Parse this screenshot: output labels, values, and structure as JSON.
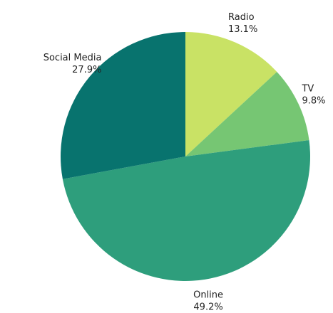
{
  "chart_data": {
    "type": "pie",
    "start_angle_deg": 0,
    "direction": "clockwise",
    "slices": [
      {
        "label": "Radio",
        "value": 13.1,
        "value_label": "13.1%",
        "color": "#c9e265"
      },
      {
        "label": "TV",
        "value": 9.8,
        "value_label": "9.8%",
        "color": "#76c673"
      },
      {
        "label": "Online",
        "value": 49.2,
        "value_label": "49.2%",
        "color": "#2e9e7c"
      },
      {
        "label": "Social Media",
        "value": 27.9,
        "value_label": "27.9%",
        "color": "#08736e"
      }
    ]
  }
}
